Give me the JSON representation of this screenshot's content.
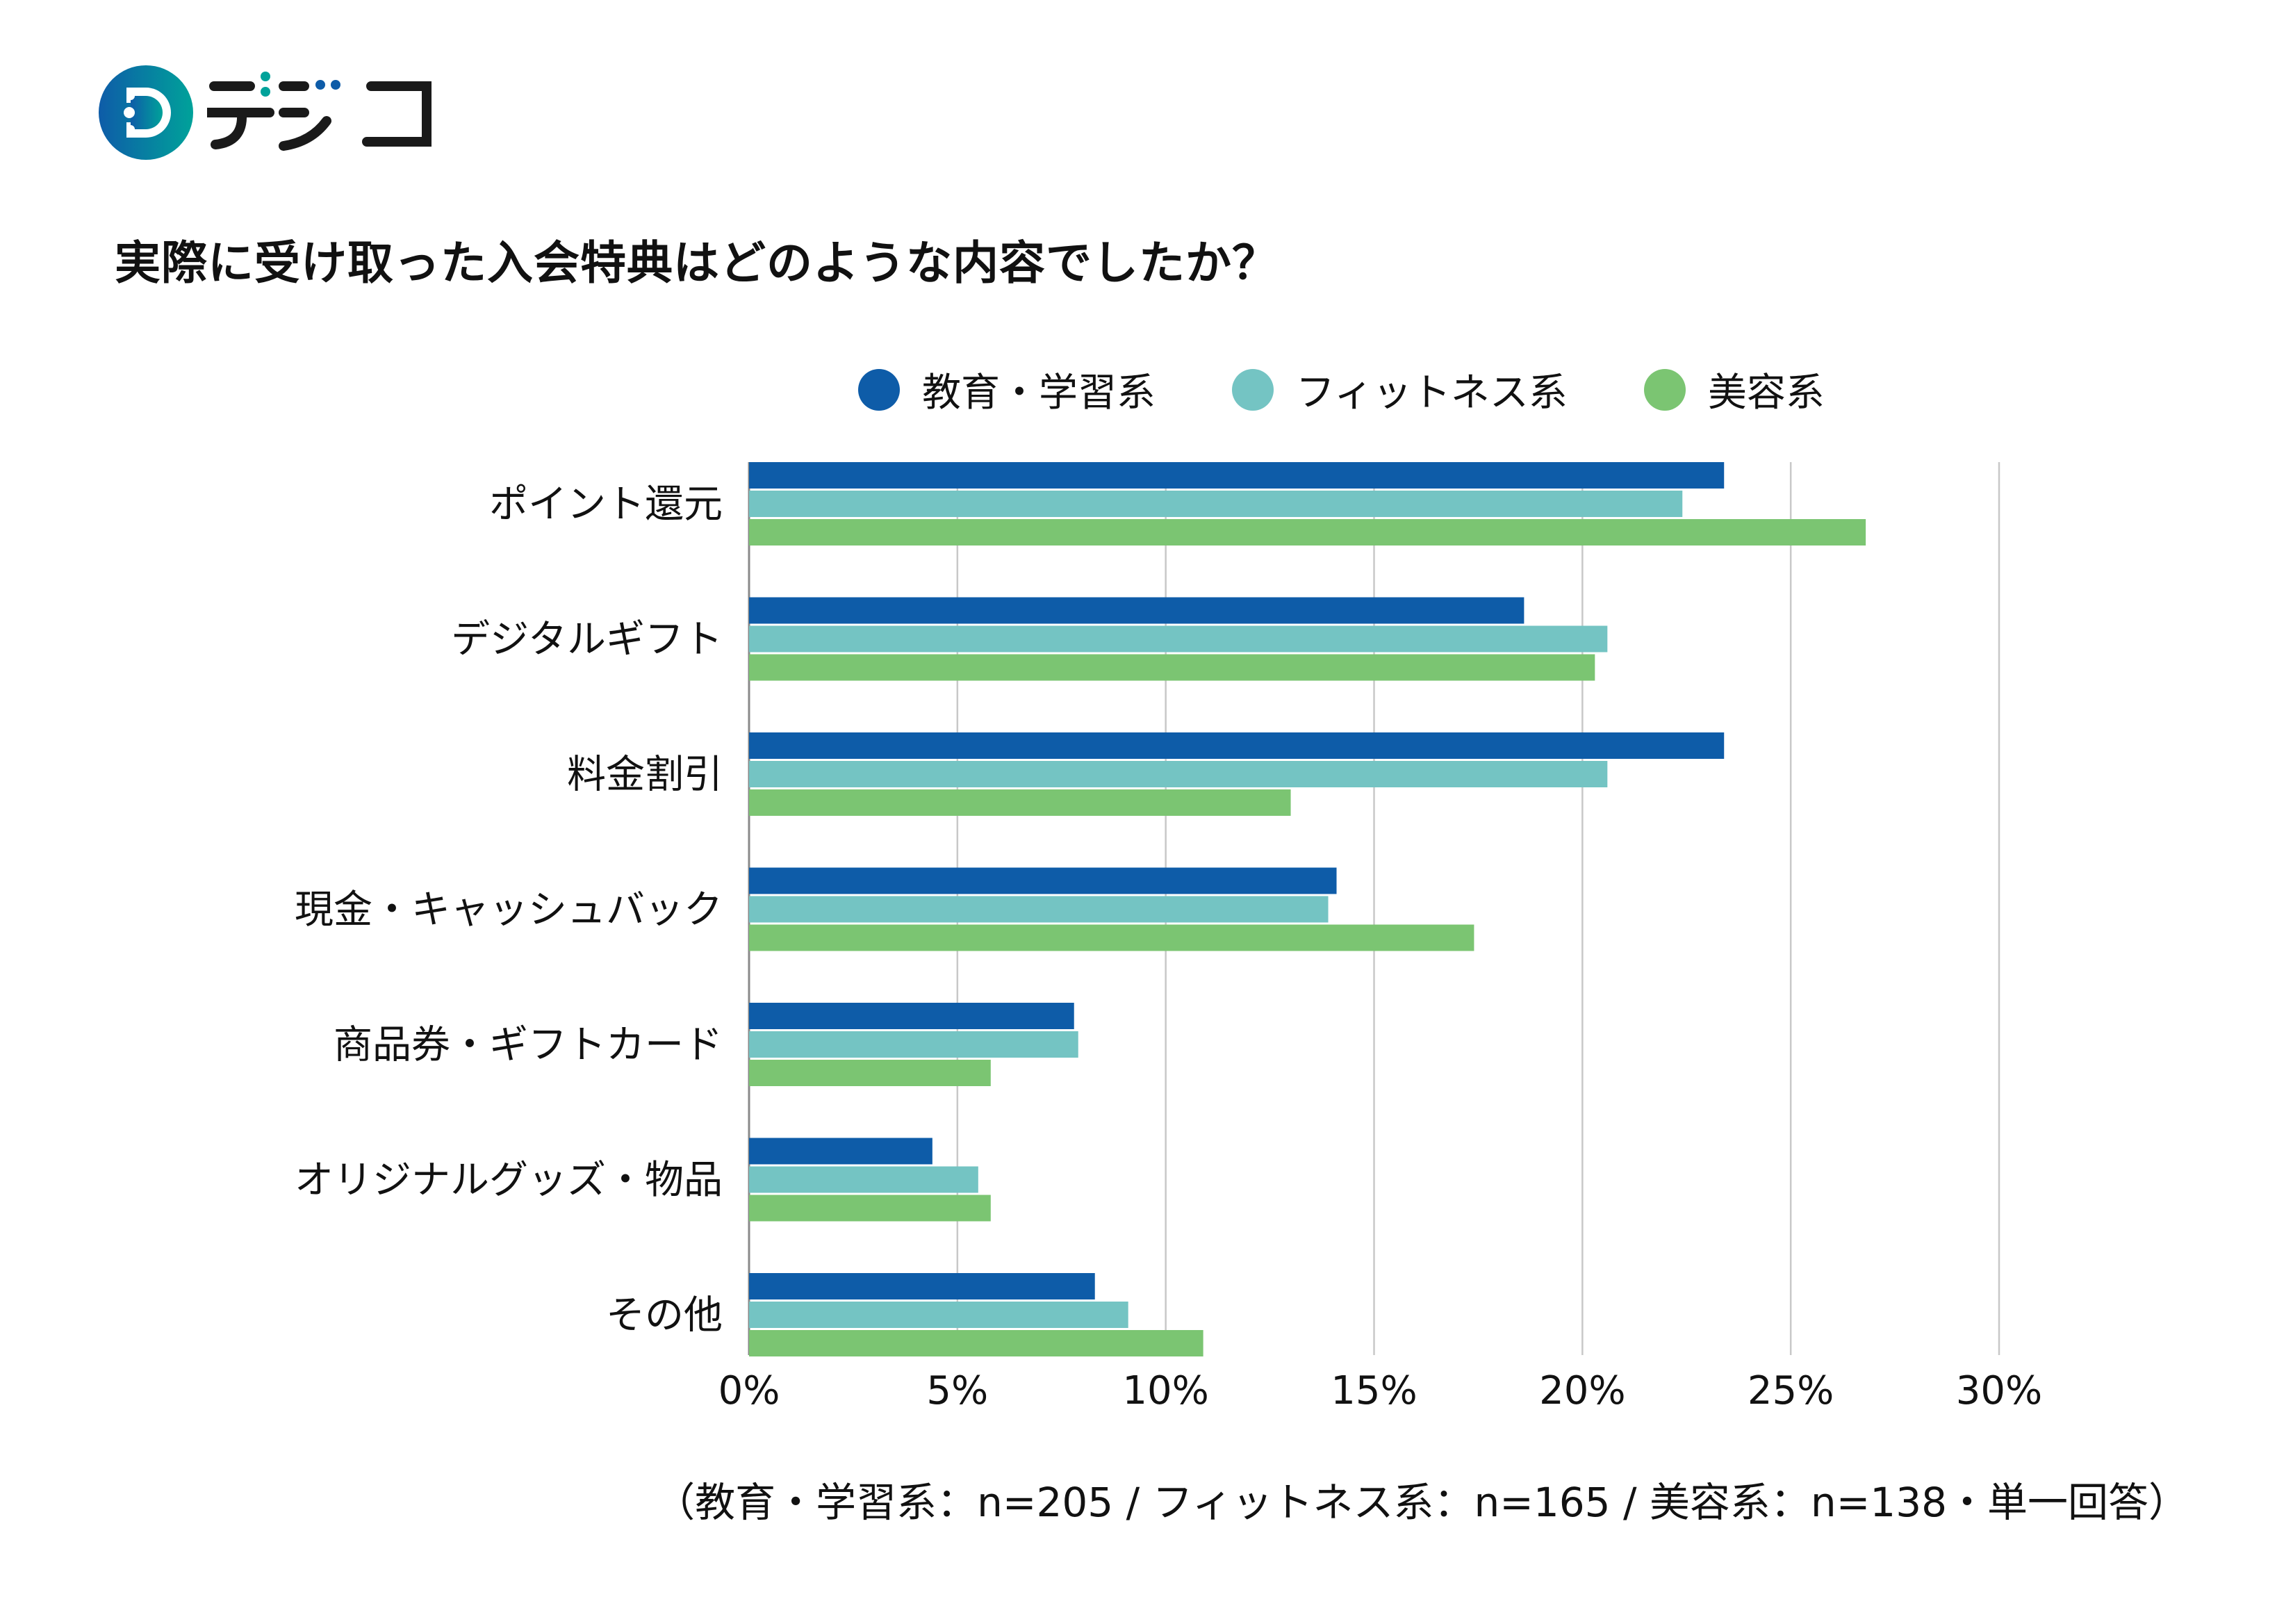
{
  "brand": {
    "name": "デジコ",
    "colors": {
      "gradient_start": "#0E5CA8",
      "gradient_end": "#00A29A",
      "dots_teal": "#00A29A",
      "dots_blue": "#0E5CA8",
      "text": "#1A1A1A"
    }
  },
  "title": "実際に受け取った入会特典はどのような内容でしたか？",
  "footnote": "（教育・学習系：n=205 / フィットネス系：n=165 / 美容系：n=138・単一回答）",
  "chart_data": {
    "type": "bar",
    "orientation": "horizontal",
    "title": "実際に受け取った入会特典はどのような内容でしたか？",
    "xlabel": "",
    "ylabel": "",
    "xlim": [
      0,
      30
    ],
    "x_ticks": [
      0,
      5,
      10,
      15,
      20,
      25,
      30
    ],
    "x_tick_labels": [
      "0%",
      "5%",
      "10%",
      "15%",
      "20%",
      "25%",
      "30%"
    ],
    "grid": "vertical",
    "legend_position": "top-center",
    "categories": [
      "ポイント還元",
      "デジタルギフト",
      "料金割引",
      "現金・キャッシュバック",
      "商品券・ギフトカード",
      "オリジナルグッズ・物品",
      "その他"
    ],
    "series": [
      {
        "name": "教育・学習系",
        "color": "#0E5CA8",
        "values": [
          23.4,
          18.6,
          23.4,
          14.1,
          7.8,
          4.4,
          8.3
        ]
      },
      {
        "name": "フィットネス系",
        "color": "#74C4C3",
        "values": [
          22.4,
          20.6,
          20.6,
          13.9,
          7.9,
          5.5,
          9.1
        ]
      },
      {
        "name": "美容系",
        "color": "#7BC572",
        "values": [
          26.8,
          20.3,
          13.0,
          17.4,
          5.8,
          5.8,
          10.9
        ]
      }
    ],
    "unit": "%"
  }
}
